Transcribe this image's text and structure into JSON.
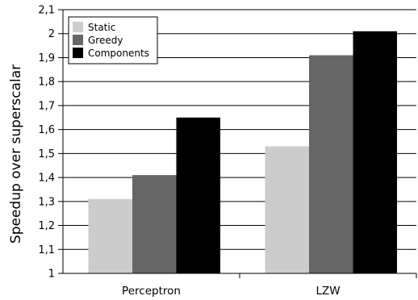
{
  "chart_data": {
    "type": "bar",
    "title": "",
    "xlabel": "",
    "ylabel": "Speedup over superscalar",
    "categories": [
      "Perceptron",
      "LZW"
    ],
    "series": [
      {
        "name": "Static",
        "color": "#cccccc",
        "values": [
          1.31,
          1.53
        ]
      },
      {
        "name": "Greedy",
        "color": "#666666",
        "values": [
          1.41,
          1.91
        ]
      },
      {
        "name": "Components",
        "color": "#000000",
        "values": [
          1.65,
          2.01
        ]
      }
    ],
    "ylim": [
      1,
      2.1
    ],
    "yticks": [
      1,
      1.1,
      1.2,
      1.3,
      1.4,
      1.5,
      1.6,
      1.7,
      1.8,
      1.9,
      2,
      2.1
    ],
    "ytick_labels": [
      "1",
      "1,1",
      "1,2",
      "1,3",
      "1,4",
      "1,5",
      "1,6",
      "1,7",
      "1,8",
      "1,9",
      "2",
      "2,1"
    ],
    "grid": "horizontal",
    "legend_position": "top-left"
  }
}
